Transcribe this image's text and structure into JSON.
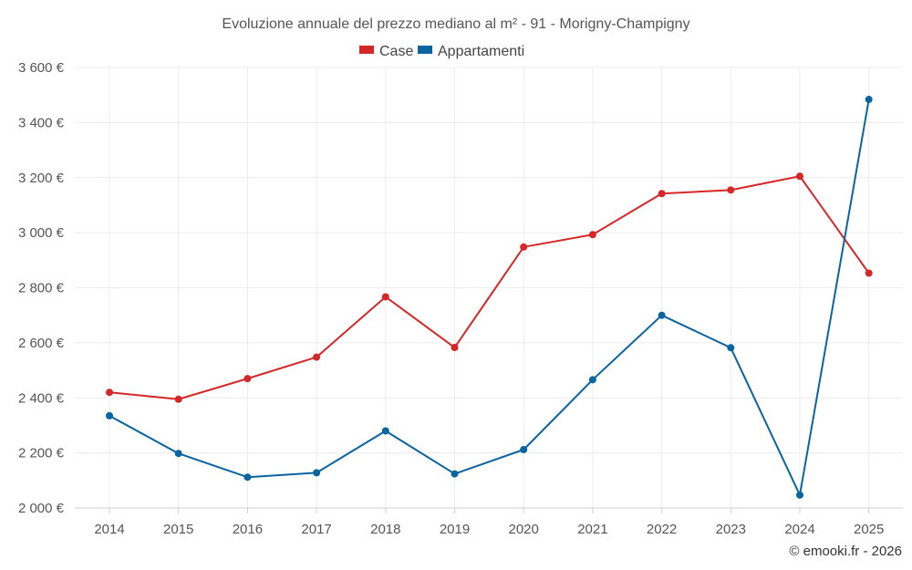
{
  "chart_data": {
    "type": "line",
    "title": "Evoluzione annuale del prezzo mediano al m² - 91 - Morigny-Champigny",
    "xlabel": "",
    "ylabel": "",
    "categories": [
      "2014",
      "2015",
      "2016",
      "2017",
      "2018",
      "2019",
      "2020",
      "2021",
      "2022",
      "2023",
      "2024",
      "2025"
    ],
    "ylim": [
      2000,
      3600
    ],
    "yticks": [
      2000,
      2200,
      2400,
      2600,
      2800,
      3000,
      3200,
      3400,
      3600
    ],
    "ytick_labels": [
      "2 000 €",
      "2 200 €",
      "2 400 €",
      "2 600 €",
      "2 800 €",
      "3 000 €",
      "3 200 €",
      "3 400 €",
      "3 600 €"
    ],
    "grid": true,
    "legend_position": "top-center",
    "series": [
      {
        "name": "Case",
        "color": "#d62728",
        "values": [
          2420,
          2395,
          2470,
          2548,
          2767,
          2583,
          2948,
          2993,
          3142,
          3155,
          3205,
          2853
        ]
      },
      {
        "name": "Appartamenti",
        "color": "#0a64a0",
        "values": [
          2335,
          2198,
          2112,
          2128,
          2280,
          2124,
          2212,
          2466,
          2700,
          2582,
          2047,
          3484
        ]
      }
    ],
    "credit": "© emooki.fr - 2026"
  }
}
